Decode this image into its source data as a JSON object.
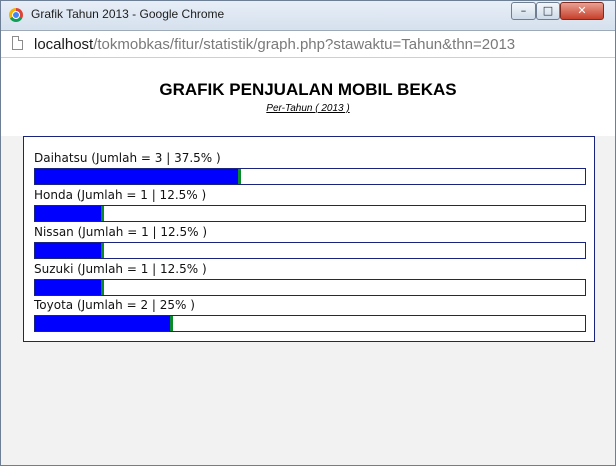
{
  "window": {
    "title": "Grafik Tahun 2013 - Google Chrome",
    "minimize_label": "–",
    "maximize_label": "□",
    "close_label": "✕"
  },
  "address_bar": {
    "host": "localhost",
    "path": "/tokmobkas/fitur/statistik/graph.php?stawaktu=Tahun&thn=2013"
  },
  "page": {
    "heading": "GRAFIK PENJUALAN MOBIL BEKAS",
    "subheading": "Per-Tahun ( 2013 )"
  },
  "colors": {
    "bar_fill": "#0000ff",
    "bar_edge": "#0a8a2a",
    "frame": "#1a237e"
  },
  "chart_data": {
    "type": "bar",
    "orientation": "horizontal",
    "categories": [
      "Daihatsu",
      "Honda",
      "Nissan",
      "Suzuki",
      "Toyota"
    ],
    "labels": [
      "Daihatsu (Jumlah = 3 | 37.5% )",
      "Honda (Jumlah = 1 | 12.5% )",
      "Nissan (Jumlah = 1 | 12.5% )",
      "Suzuki (Jumlah = 1 | 12.5% )",
      "Toyota (Jumlah = 2 | 25% )"
    ],
    "values": [
      3,
      1,
      1,
      1,
      2
    ],
    "percentages": [
      37.5,
      12.5,
      12.5,
      12.5,
      25
    ],
    "xlim": [
      0,
      8
    ]
  }
}
